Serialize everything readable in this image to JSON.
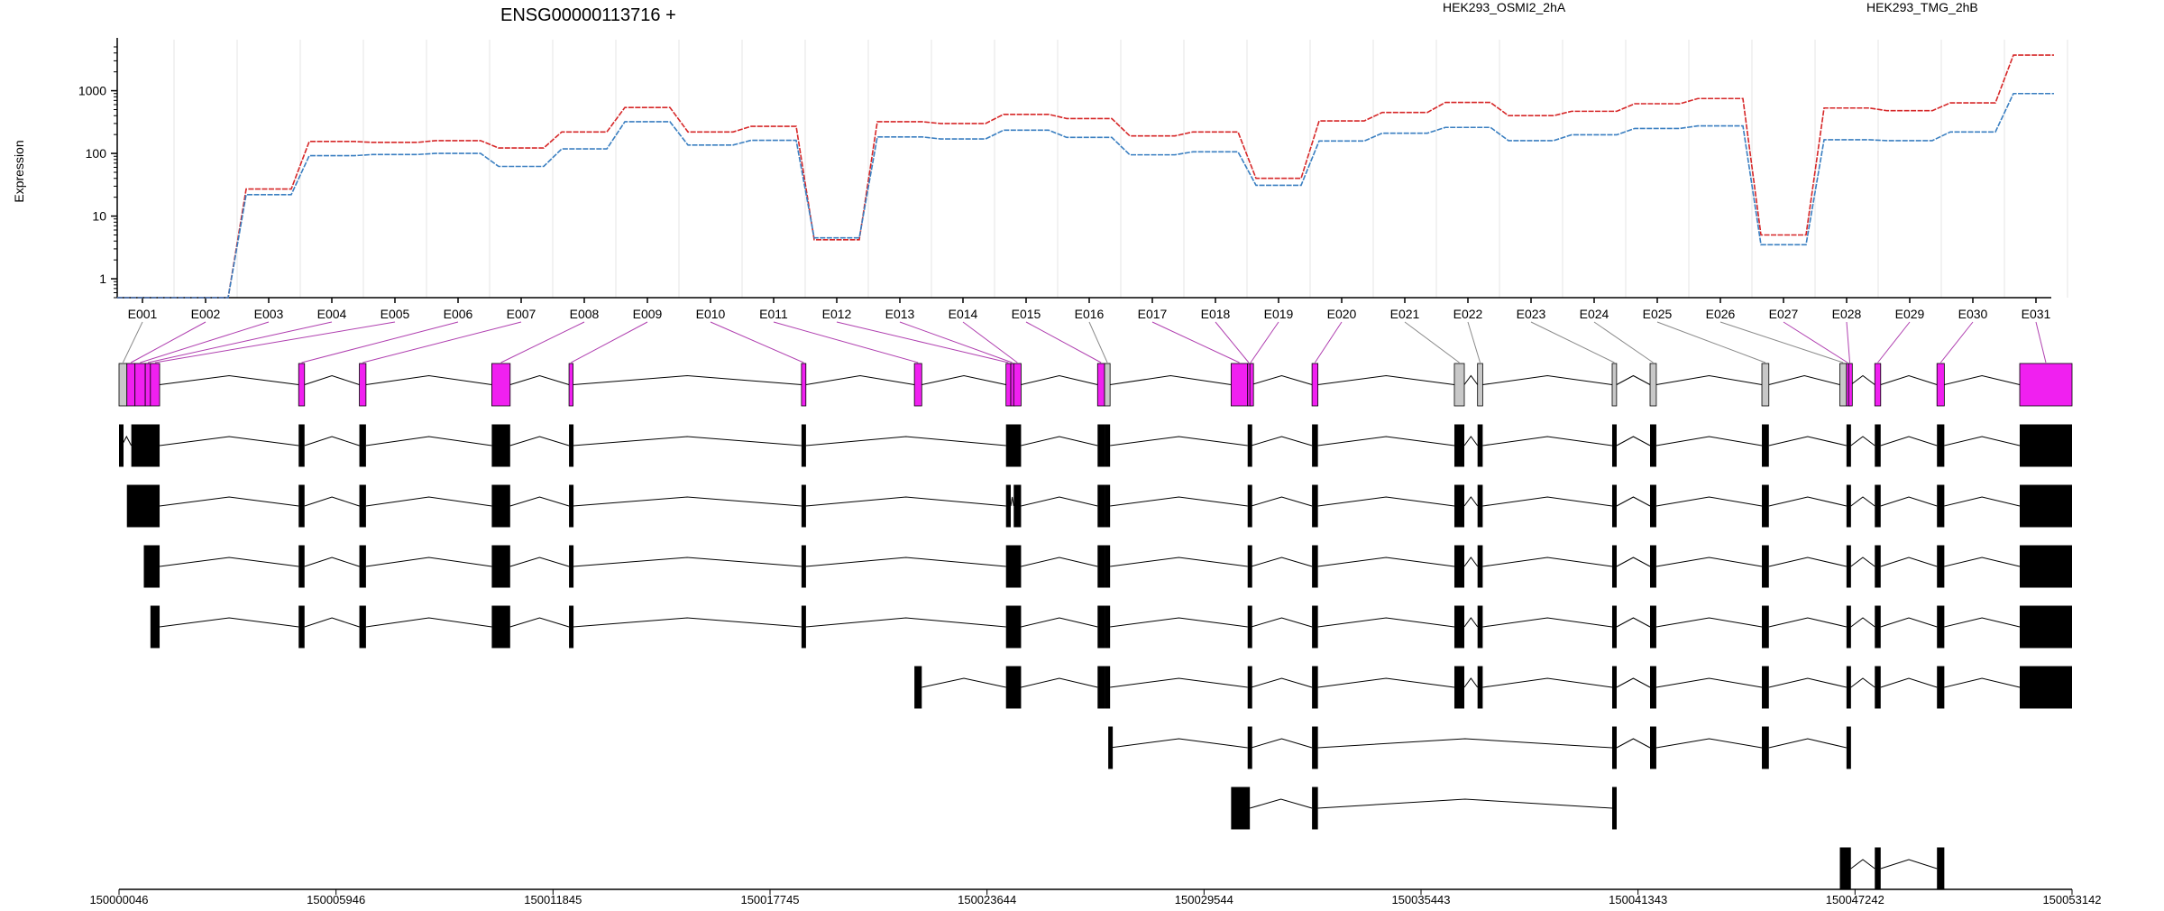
{
  "title": "ENSG00000113716 +",
  "ylabel": "Expression",
  "colors": {
    "series1": "#d62728",
    "series2": "#3a7fc1",
    "exon_highlight": "#f020f0",
    "exon_gray": "#c8c8c8",
    "connector_highlight": "#b040b0",
    "connector_gray": "#8a8a8a"
  },
  "chart_data": {
    "type": "line",
    "scale": "log",
    "ylim": [
      0.5,
      5000
    ],
    "y_ticks": [
      "1",
      "10",
      "100",
      "1000"
    ],
    "categories": [
      "E001",
      "E002",
      "E003",
      "E004",
      "E005",
      "E006",
      "E007",
      "E008",
      "E009",
      "E010",
      "E011",
      "E012",
      "E013",
      "E014",
      "E015",
      "E016",
      "E017",
      "E018",
      "E019",
      "E020",
      "E021",
      "E022",
      "E023",
      "E024",
      "E025",
      "E026",
      "E027",
      "E028",
      "E029",
      "E030",
      "E031"
    ],
    "series": [
      {
        "name": "HEK293_OSMI2_2hA",
        "color": "#d62728",
        "values": [
          0.5,
          0.5,
          27,
          155,
          150,
          160,
          122,
          220,
          540,
          220,
          270,
          4.2,
          320,
          300,
          420,
          360,
          190,
          220,
          40,
          330,
          450,
          650,
          400,
          470,
          620,
          750,
          5,
          530,
          480,
          640,
          3700
        ]
      },
      {
        "name": "HEK293_TMG_2hB",
        "color": "#3a7fc1",
        "values": [
          0.5,
          0.5,
          22,
          92,
          96,
          100,
          62,
          118,
          320,
          136,
          162,
          4.5,
          183,
          170,
          235,
          180,
          95,
          106,
          31,
          158,
          210,
          260,
          160,
          198,
          250,
          275,
          3.5,
          165,
          160,
          220,
          900
        ]
      }
    ]
  },
  "gene_model": {
    "coord_ticks": [
      "150000046",
      "150005946",
      "150011845",
      "150017745",
      "150023644",
      "150029544",
      "150035443",
      "150041343",
      "150047242",
      "150053142"
    ],
    "coord_range": [
      150000046,
      150053142
    ],
    "exons": [
      {
        "id": "E001",
        "start": 150000046,
        "end": 150000260,
        "hl": false
      },
      {
        "id": "E002",
        "start": 150000260,
        "end": 150000480,
        "hl": true
      },
      {
        "id": "E003",
        "start": 150000480,
        "end": 150000760,
        "hl": true
      },
      {
        "id": "E004",
        "start": 150000760,
        "end": 150000900,
        "hl": true
      },
      {
        "id": "E005",
        "start": 150000900,
        "end": 150001150,
        "hl": true
      },
      {
        "id": "E006",
        "start": 150004930,
        "end": 150005090,
        "hl": true
      },
      {
        "id": "E007",
        "start": 150006580,
        "end": 150006760,
        "hl": true
      },
      {
        "id": "E008",
        "start": 150010180,
        "end": 150010680,
        "hl": true
      },
      {
        "id": "E009",
        "start": 150012280,
        "end": 150012390,
        "hl": true
      },
      {
        "id": "E010",
        "start": 150018600,
        "end": 150018720,
        "hl": true
      },
      {
        "id": "E011",
        "start": 150021670,
        "end": 150021870,
        "hl": true
      },
      {
        "id": "E012",
        "start": 150024160,
        "end": 150024290,
        "hl": true
      },
      {
        "id": "E013",
        "start": 150024290,
        "end": 150024370,
        "hl": true
      },
      {
        "id": "E014",
        "start": 150024370,
        "end": 150024570,
        "hl": true
      },
      {
        "id": "E015",
        "start": 150026650,
        "end": 150026840,
        "hl": true
      },
      {
        "id": "E016",
        "start": 150026840,
        "end": 150026990,
        "hl": false
      },
      {
        "id": "E017",
        "start": 150030280,
        "end": 150030730,
        "hl": true
      },
      {
        "id": "E018",
        "start": 150030730,
        "end": 150030790,
        "hl": true
      },
      {
        "id": "E019",
        "start": 150030790,
        "end": 150030830,
        "hl": true
      },
      {
        "id": "E020",
        "start": 150032480,
        "end": 150032640,
        "hl": true
      },
      {
        "id": "E021",
        "start": 150036350,
        "end": 150036620,
        "hl": false
      },
      {
        "id": "E022",
        "start": 150036980,
        "end": 150037120,
        "hl": false
      },
      {
        "id": "E023",
        "start": 150040640,
        "end": 150040760,
        "hl": false
      },
      {
        "id": "E024",
        "start": 150041670,
        "end": 150041840,
        "hl": false
      },
      {
        "id": "E025",
        "start": 150044710,
        "end": 150044900,
        "hl": false
      },
      {
        "id": "E026",
        "start": 150046830,
        "end": 150047010,
        "hl": false
      },
      {
        "id": "E027",
        "start": 150047010,
        "end": 150047070,
        "hl": true
      },
      {
        "id": "E028",
        "start": 150047070,
        "end": 150047130,
        "hl": true
      },
      {
        "id": "E029",
        "start": 150047780,
        "end": 150047940,
        "hl": true
      },
      {
        "id": "E030",
        "start": 150049470,
        "end": 150049670,
        "hl": true
      },
      {
        "id": "E031",
        "start": 150051720,
        "end": 150053142,
        "hl": true
      }
    ],
    "transcripts": [
      [
        [
          150000046,
          150000120
        ],
        [
          150000380,
          150001150
        ],
        [
          150004930,
          150005090
        ],
        [
          150006580,
          150006760
        ],
        [
          150010180,
          150010680
        ],
        [
          150012280,
          150012390
        ],
        [
          150018600,
          150018720
        ],
        [
          150024160,
          150024570
        ],
        [
          150026650,
          150026840
        ],
        [
          150026840,
          150026990
        ],
        [
          150030730,
          150030830
        ],
        [
          150032480,
          150032640
        ],
        [
          150036350,
          150036620
        ],
        [
          150036980,
          150037120
        ],
        [
          150040640,
          150040760
        ],
        [
          150041670,
          150041840
        ],
        [
          150044710,
          150044900
        ],
        [
          150047010,
          150047130
        ],
        [
          150047780,
          150047940
        ],
        [
          150049470,
          150049670
        ],
        [
          150051720,
          150053142
        ]
      ],
      [
        [
          150000260,
          150001150
        ],
        [
          150004930,
          150005090
        ],
        [
          150006580,
          150006760
        ],
        [
          150010180,
          150010680
        ],
        [
          150012280,
          150012390
        ],
        [
          150018600,
          150018720
        ],
        [
          150024160,
          150024290
        ],
        [
          150024370,
          150024570
        ],
        [
          150026650,
          150026840
        ],
        [
          150026840,
          150026990
        ],
        [
          150030730,
          150030830
        ],
        [
          150032480,
          150032640
        ],
        [
          150036350,
          150036620
        ],
        [
          150036980,
          150037120
        ],
        [
          150040640,
          150040760
        ],
        [
          150041670,
          150041840
        ],
        [
          150044710,
          150044900
        ],
        [
          150047010,
          150047130
        ],
        [
          150047780,
          150047940
        ],
        [
          150049470,
          150049670
        ],
        [
          150051720,
          150053142
        ]
      ],
      [
        [
          150000720,
          150001150
        ],
        [
          150004930,
          150005090
        ],
        [
          150006580,
          150006760
        ],
        [
          150010180,
          150010680
        ],
        [
          150012280,
          150012390
        ],
        [
          150018600,
          150018720
        ],
        [
          150024160,
          150024570
        ],
        [
          150026650,
          150026840
        ],
        [
          150026840,
          150026990
        ],
        [
          150030730,
          150030830
        ],
        [
          150032480,
          150032640
        ],
        [
          150036350,
          150036620
        ],
        [
          150036980,
          150037120
        ],
        [
          150040640,
          150040760
        ],
        [
          150041670,
          150041840
        ],
        [
          150044710,
          150044900
        ],
        [
          150047010,
          150047130
        ],
        [
          150047780,
          150047940
        ],
        [
          150049470,
          150049670
        ],
        [
          150051720,
          150053142
        ]
      ],
      [
        [
          150000900,
          150001150
        ],
        [
          150004930,
          150005090
        ],
        [
          150006580,
          150006760
        ],
        [
          150010180,
          150010680
        ],
        [
          150012280,
          150012390
        ],
        [
          150018600,
          150018720
        ],
        [
          150024160,
          150024570
        ],
        [
          150026650,
          150026840
        ],
        [
          150026840,
          150026990
        ],
        [
          150030730,
          150030830
        ],
        [
          150032480,
          150032640
        ],
        [
          150036350,
          150036620
        ],
        [
          150036980,
          150037120
        ],
        [
          150040640,
          150040760
        ],
        [
          150041670,
          150041840
        ],
        [
          150044710,
          150044900
        ],
        [
          150047010,
          150047130
        ],
        [
          150047780,
          150047940
        ],
        [
          150049470,
          150049670
        ],
        [
          150051720,
          150053142
        ]
      ],
      [
        [
          150021670,
          150021870
        ],
        [
          150024160,
          150024570
        ],
        [
          150026650,
          150026840
        ],
        [
          150026840,
          150026990
        ],
        [
          150030730,
          150030830
        ],
        [
          150032480,
          150032640
        ],
        [
          150036350,
          150036620
        ],
        [
          150036980,
          150037120
        ],
        [
          150040640,
          150040760
        ],
        [
          150041670,
          150041840
        ],
        [
          150044710,
          150044900
        ],
        [
          150047010,
          150047130
        ],
        [
          150047780,
          150047940
        ],
        [
          150049470,
          150049670
        ],
        [
          150051720,
          150053142
        ]
      ],
      [
        [
          150026940,
          150026990
        ],
        [
          150030730,
          150030830
        ],
        [
          150032480,
          150032640
        ],
        [
          150040640,
          150040760
        ],
        [
          150041670,
          150041840
        ],
        [
          150044710,
          150044900
        ],
        [
          150047010,
          150047130
        ]
      ],
      [
        [
          150030280,
          150030790
        ],
        [
          150032480,
          150032640
        ],
        [
          150040640,
          150040760
        ]
      ],
      [
        [
          150046830,
          150047130
        ],
        [
          150047780,
          150047940
        ],
        [
          150049470,
          150049670
        ]
      ]
    ]
  }
}
